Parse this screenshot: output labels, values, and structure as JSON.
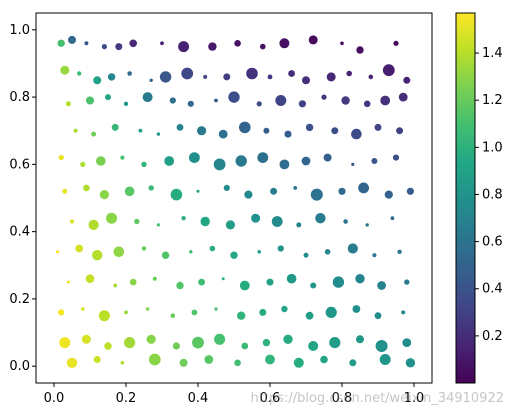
{
  "chart_data": {
    "type": "scatter",
    "title": "",
    "xlabel": "",
    "ylabel": "",
    "xlim": [
      -0.05,
      1.05
    ],
    "ylim": [
      -0.05,
      1.05
    ],
    "grid": false,
    "x_ticks": [
      "0.0",
      "0.2",
      "0.4",
      "0.6",
      "0.8",
      "1.0"
    ],
    "y_ticks": [
      "0.0",
      "0.2",
      "0.4",
      "0.6",
      "0.8",
      "1.0"
    ],
    "colorbar": {
      "colormap": "viridis",
      "range": [
        0.0,
        1.57
      ],
      "ticks": [
        "0.2",
        "0.4",
        "0.6",
        "0.8",
        "1.0",
        "1.2",
        "1.4"
      ]
    },
    "color_rule": "atan2(1 - y, x)",
    "marker_size_range": "small to large (random)",
    "point_count": 500,
    "points": [
      [
        0.02,
        0.96
      ],
      [
        0.05,
        0.97
      ],
      [
        0.09,
        0.96
      ],
      [
        0.14,
        0.95
      ],
      [
        0.18,
        0.95
      ],
      [
        0.22,
        0.96
      ],
      [
        0.3,
        0.96
      ],
      [
        0.36,
        0.95
      ],
      [
        0.44,
        0.95
      ],
      [
        0.51,
        0.96
      ],
      [
        0.58,
        0.95
      ],
      [
        0.64,
        0.96
      ],
      [
        0.72,
        0.97
      ],
      [
        0.8,
        0.96
      ],
      [
        0.85,
        0.94
      ],
      [
        0.95,
        0.96
      ],
      [
        0.03,
        0.88
      ],
      [
        0.07,
        0.87
      ],
      [
        0.12,
        0.85
      ],
      [
        0.16,
        0.86
      ],
      [
        0.21,
        0.87
      ],
      [
        0.27,
        0.85
      ],
      [
        0.31,
        0.86
      ],
      [
        0.37,
        0.87
      ],
      [
        0.42,
        0.86
      ],
      [
        0.48,
        0.86
      ],
      [
        0.55,
        0.87
      ],
      [
        0.6,
        0.86
      ],
      [
        0.66,
        0.87
      ],
      [
        0.7,
        0.85
      ],
      [
        0.77,
        0.86
      ],
      [
        0.82,
        0.87
      ],
      [
        0.88,
        0.86
      ],
      [
        0.93,
        0.88
      ],
      [
        0.98,
        0.85
      ],
      [
        0.04,
        0.78
      ],
      [
        0.1,
        0.79
      ],
      [
        0.15,
        0.8
      ],
      [
        0.2,
        0.78
      ],
      [
        0.26,
        0.8
      ],
      [
        0.33,
        0.79
      ],
      [
        0.38,
        0.78
      ],
      [
        0.45,
        0.79
      ],
      [
        0.5,
        0.8
      ],
      [
        0.57,
        0.78
      ],
      [
        0.63,
        0.79
      ],
      [
        0.69,
        0.78
      ],
      [
        0.75,
        0.8
      ],
      [
        0.81,
        0.79
      ],
      [
        0.87,
        0.78
      ],
      [
        0.92,
        0.79
      ],
      [
        0.97,
        0.8
      ],
      [
        0.06,
        0.7
      ],
      [
        0.11,
        0.69
      ],
      [
        0.17,
        0.71
      ],
      [
        0.24,
        0.7
      ],
      [
        0.29,
        0.69
      ],
      [
        0.35,
        0.71
      ],
      [
        0.41,
        0.7
      ],
      [
        0.47,
        0.69
      ],
      [
        0.53,
        0.71
      ],
      [
        0.59,
        0.7
      ],
      [
        0.65,
        0.69
      ],
      [
        0.71,
        0.71
      ],
      [
        0.78,
        0.7
      ],
      [
        0.84,
        0.69
      ],
      [
        0.9,
        0.71
      ],
      [
        0.96,
        0.7
      ],
      [
        0.02,
        0.62
      ],
      [
        0.08,
        0.6
      ],
      [
        0.13,
        0.61
      ],
      [
        0.19,
        0.62
      ],
      [
        0.25,
        0.6
      ],
      [
        0.32,
        0.61
      ],
      [
        0.39,
        0.62
      ],
      [
        0.46,
        0.6
      ],
      [
        0.52,
        0.61
      ],
      [
        0.58,
        0.62
      ],
      [
        0.64,
        0.6
      ],
      [
        0.7,
        0.61
      ],
      [
        0.76,
        0.62
      ],
      [
        0.83,
        0.6
      ],
      [
        0.89,
        0.61
      ],
      [
        0.95,
        0.62
      ],
      [
        0.03,
        0.52
      ],
      [
        0.09,
        0.53
      ],
      [
        0.14,
        0.51
      ],
      [
        0.21,
        0.52
      ],
      [
        0.27,
        0.53
      ],
      [
        0.34,
        0.51
      ],
      [
        0.4,
        0.52
      ],
      [
        0.48,
        0.53
      ],
      [
        0.54,
        0.51
      ],
      [
        0.61,
        0.52
      ],
      [
        0.67,
        0.53
      ],
      [
        0.73,
        0.51
      ],
      [
        0.8,
        0.52
      ],
      [
        0.86,
        0.53
      ],
      [
        0.93,
        0.51
      ],
      [
        0.99,
        0.52
      ],
      [
        0.05,
        0.43
      ],
      [
        0.11,
        0.42
      ],
      [
        0.16,
        0.44
      ],
      [
        0.23,
        0.43
      ],
      [
        0.29,
        0.42
      ],
      [
        0.36,
        0.44
      ],
      [
        0.42,
        0.43
      ],
      [
        0.49,
        0.42
      ],
      [
        0.56,
        0.44
      ],
      [
        0.62,
        0.43
      ],
      [
        0.68,
        0.42
      ],
      [
        0.74,
        0.44
      ],
      [
        0.81,
        0.43
      ],
      [
        0.87,
        0.42
      ],
      [
        0.94,
        0.44
      ],
      [
        0.01,
        0.34
      ],
      [
        0.07,
        0.35
      ],
      [
        0.12,
        0.33
      ],
      [
        0.18,
        0.34
      ],
      [
        0.25,
        0.35
      ],
      [
        0.31,
        0.33
      ],
      [
        0.38,
        0.34
      ],
      [
        0.44,
        0.35
      ],
      [
        0.5,
        0.33
      ],
      [
        0.57,
        0.34
      ],
      [
        0.63,
        0.35
      ],
      [
        0.7,
        0.33
      ],
      [
        0.76,
        0.34
      ],
      [
        0.83,
        0.35
      ],
      [
        0.89,
        0.33
      ],
      [
        0.96,
        0.34
      ],
      [
        0.04,
        0.25
      ],
      [
        0.1,
        0.26
      ],
      [
        0.17,
        0.24
      ],
      [
        0.22,
        0.25
      ],
      [
        0.28,
        0.26
      ],
      [
        0.35,
        0.24
      ],
      [
        0.41,
        0.25
      ],
      [
        0.47,
        0.26
      ],
      [
        0.53,
        0.24
      ],
      [
        0.6,
        0.25
      ],
      [
        0.66,
        0.26
      ],
      [
        0.72,
        0.24
      ],
      [
        0.79,
        0.25
      ],
      [
        0.85,
        0.26
      ],
      [
        0.91,
        0.24
      ],
      [
        0.98,
        0.25
      ],
      [
        0.02,
        0.16
      ],
      [
        0.08,
        0.17
      ],
      [
        0.14,
        0.15
      ],
      [
        0.2,
        0.16
      ],
      [
        0.26,
        0.17
      ],
      [
        0.33,
        0.15
      ],
      [
        0.39,
        0.16
      ],
      [
        0.45,
        0.17
      ],
      [
        0.52,
        0.15
      ],
      [
        0.58,
        0.16
      ],
      [
        0.64,
        0.17
      ],
      [
        0.71,
        0.15
      ],
      [
        0.77,
        0.16
      ],
      [
        0.84,
        0.17
      ],
      [
        0.9,
        0.15
      ],
      [
        0.97,
        0.16
      ],
      [
        0.03,
        0.07
      ],
      [
        0.09,
        0.08
      ],
      [
        0.15,
        0.06
      ],
      [
        0.21,
        0.07
      ],
      [
        0.27,
        0.08
      ],
      [
        0.34,
        0.06
      ],
      [
        0.4,
        0.07
      ],
      [
        0.46,
        0.08
      ],
      [
        0.53,
        0.06
      ],
      [
        0.59,
        0.07
      ],
      [
        0.65,
        0.08
      ],
      [
        0.72,
        0.06
      ],
      [
        0.78,
        0.07
      ],
      [
        0.85,
        0.08
      ],
      [
        0.91,
        0.06
      ],
      [
        0.98,
        0.07
      ],
      [
        0.05,
        0.01
      ],
      [
        0.12,
        0.02
      ],
      [
        0.19,
        0.01
      ],
      [
        0.28,
        0.02
      ],
      [
        0.36,
        0.01
      ],
      [
        0.43,
        0.02
      ],
      [
        0.51,
        0.01
      ],
      [
        0.6,
        0.02
      ],
      [
        0.68,
        0.01
      ],
      [
        0.75,
        0.02
      ],
      [
        0.83,
        0.01
      ],
      [
        0.92,
        0.02
      ],
      [
        0.99,
        0.01
      ]
    ]
  },
  "watermark": "https://blog.csdn.net/weixin_34910922"
}
